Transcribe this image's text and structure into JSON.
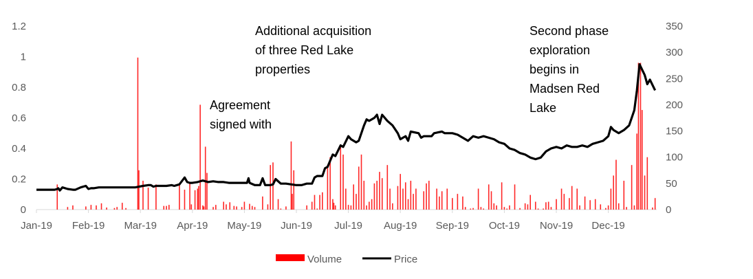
{
  "chart_data": {
    "type": "line+bar",
    "title": "",
    "xlabel": "",
    "ylabel_left": "",
    "ylabel_right": "",
    "x_unit": "months since Jan-19",
    "x_range": [
      0,
      11.9
    ],
    "x_ticks": [
      "Jan-19",
      "Feb-19",
      "Mar-19",
      "Apr-19",
      "May-19",
      "Jun-19",
      "Jul-19",
      "Aug-19",
      "Sep-19",
      "Oct-19",
      "Nov-19",
      "Dec-19"
    ],
    "y_left": {
      "range": [
        0,
        1.2
      ],
      "ticks": [
        "0",
        "0.2",
        "0.4",
        "0.6",
        "0.8",
        "1",
        "1.2"
      ],
      "tick_values": [
        0,
        0.2,
        0.4,
        0.6,
        0.8,
        1,
        1.2
      ]
    },
    "y_right": {
      "range": [
        0,
        350
      ],
      "ticks": [
        "0",
        "50",
        "100",
        "150",
        "200",
        "250",
        "300",
        "350"
      ],
      "tick_values": [
        0,
        50,
        100,
        150,
        200,
        250,
        300,
        350
      ]
    },
    "grid": false,
    "legend": {
      "position": "bottom",
      "items": [
        {
          "name": "Volume",
          "color": "#ff0000",
          "kind": "bar"
        },
        {
          "name": "Price",
          "color": "#000000",
          "kind": "line"
        }
      ]
    },
    "series": [
      {
        "name": "Price",
        "type": "line",
        "axis": "left",
        "color": "#000000",
        "points": [
          [
            0.0,
            0.13
          ],
          [
            0.35,
            0.13
          ],
          [
            0.4,
            0.135
          ],
          [
            0.42,
            0.14
          ],
          [
            0.45,
            0.125
          ],
          [
            0.5,
            0.145
          ],
          [
            0.6,
            0.135
          ],
          [
            0.7,
            0.13
          ],
          [
            0.75,
            0.13
          ],
          [
            0.85,
            0.145
          ],
          [
            0.95,
            0.155
          ],
          [
            1.0,
            0.135
          ],
          [
            1.05,
            0.14
          ],
          [
            1.1,
            0.14
          ],
          [
            1.2,
            0.145
          ],
          [
            1.3,
            0.145
          ],
          [
            1.5,
            0.145
          ],
          [
            1.6,
            0.145
          ],
          [
            1.7,
            0.145
          ],
          [
            1.9,
            0.145
          ],
          [
            2.05,
            0.155
          ],
          [
            2.15,
            0.16
          ],
          [
            2.2,
            0.16
          ],
          [
            2.25,
            0.15
          ],
          [
            2.3,
            0.155
          ],
          [
            2.5,
            0.155
          ],
          [
            2.6,
            0.16
          ],
          [
            2.65,
            0.155
          ],
          [
            2.75,
            0.165
          ],
          [
            2.85,
            0.21
          ],
          [
            2.9,
            0.18
          ],
          [
            2.95,
            0.175
          ],
          [
            3.0,
            0.175
          ],
          [
            3.1,
            0.18
          ],
          [
            3.2,
            0.19
          ],
          [
            3.3,
            0.18
          ],
          [
            3.4,
            0.185
          ],
          [
            3.5,
            0.18
          ],
          [
            3.6,
            0.18
          ],
          [
            3.7,
            0.175
          ],
          [
            3.8,
            0.175
          ],
          [
            3.9,
            0.175
          ],
          [
            4.0,
            0.175
          ],
          [
            4.05,
            0.175
          ],
          [
            4.08,
            0.205
          ],
          [
            4.1,
            0.175
          ],
          [
            4.2,
            0.16
          ],
          [
            4.3,
            0.16
          ],
          [
            4.35,
            0.205
          ],
          [
            4.4,
            0.16
          ],
          [
            4.5,
            0.16
          ],
          [
            4.55,
            0.165
          ],
          [
            4.6,
            0.2
          ],
          [
            4.7,
            0.17
          ],
          [
            4.8,
            0.17
          ],
          [
            5.0,
            0.16
          ],
          [
            5.1,
            0.16
          ],
          [
            5.2,
            0.17
          ],
          [
            5.3,
            0.17
          ],
          [
            5.35,
            0.21
          ],
          [
            5.4,
            0.22
          ],
          [
            5.5,
            0.22
          ],
          [
            5.55,
            0.27
          ],
          [
            5.6,
            0.28
          ],
          [
            5.7,
            0.36
          ],
          [
            5.75,
            0.35
          ],
          [
            5.85,
            0.42
          ],
          [
            5.9,
            0.41
          ],
          [
            6.0,
            0.48
          ],
          [
            6.05,
            0.46
          ],
          [
            6.1,
            0.45
          ],
          [
            6.15,
            0.44
          ],
          [
            6.2,
            0.45
          ],
          [
            6.3,
            0.55
          ],
          [
            6.35,
            0.59
          ],
          [
            6.4,
            0.58
          ],
          [
            6.5,
            0.6
          ],
          [
            6.55,
            0.62
          ],
          [
            6.6,
            0.56
          ],
          [
            6.65,
            0.62
          ],
          [
            6.75,
            0.58
          ],
          [
            6.85,
            0.55
          ],
          [
            6.95,
            0.5
          ],
          [
            7.0,
            0.46
          ],
          [
            7.05,
            0.47
          ],
          [
            7.1,
            0.48
          ],
          [
            7.15,
            0.45
          ],
          [
            7.2,
            0.51
          ],
          [
            7.35,
            0.5
          ],
          [
            7.4,
            0.47
          ],
          [
            7.45,
            0.48
          ],
          [
            7.6,
            0.48
          ],
          [
            7.65,
            0.5
          ],
          [
            7.8,
            0.51
          ],
          [
            7.85,
            0.5
          ],
          [
            8.0,
            0.5
          ],
          [
            8.1,
            0.49
          ],
          [
            8.2,
            0.47
          ],
          [
            8.3,
            0.45
          ],
          [
            8.4,
            0.48
          ],
          [
            8.5,
            0.47
          ],
          [
            8.6,
            0.48
          ],
          [
            8.7,
            0.47
          ],
          [
            8.8,
            0.46
          ],
          [
            8.9,
            0.44
          ],
          [
            9.0,
            0.43
          ],
          [
            9.1,
            0.4
          ],
          [
            9.2,
            0.39
          ],
          [
            9.3,
            0.37
          ],
          [
            9.4,
            0.36
          ],
          [
            9.5,
            0.34
          ],
          [
            9.6,
            0.33
          ],
          [
            9.7,
            0.34
          ],
          [
            9.8,
            0.38
          ],
          [
            9.9,
            0.4
          ],
          [
            10.0,
            0.41
          ],
          [
            10.1,
            0.4
          ],
          [
            10.2,
            0.42
          ],
          [
            10.3,
            0.41
          ],
          [
            10.4,
            0.41
          ],
          [
            10.5,
            0.42
          ],
          [
            10.6,
            0.41
          ],
          [
            10.7,
            0.43
          ],
          [
            10.8,
            0.44
          ],
          [
            10.9,
            0.45
          ],
          [
            11.0,
            0.48
          ],
          [
            11.05,
            0.54
          ],
          [
            11.1,
            0.52
          ],
          [
            11.2,
            0.5
          ],
          [
            11.3,
            0.52
          ],
          [
            11.4,
            0.55
          ],
          [
            11.5,
            0.65
          ],
          [
            11.55,
            0.78
          ],
          [
            11.6,
            0.95
          ],
          [
            11.7,
            0.88
          ],
          [
            11.75,
            0.82
          ],
          [
            11.8,
            0.85
          ],
          [
            11.9,
            0.78
          ]
        ]
      },
      {
        "name": "Volume",
        "type": "bar",
        "axis": "right",
        "color": "#ff0000",
        "points": [
          [
            0.4,
            48
          ],
          [
            0.6,
            5
          ],
          [
            0.7,
            8
          ],
          [
            0.95,
            6
          ],
          [
            1.05,
            9
          ],
          [
            1.15,
            8
          ],
          [
            1.25,
            12
          ],
          [
            1.35,
            4
          ],
          [
            1.5,
            3
          ],
          [
            1.55,
            5
          ],
          [
            1.65,
            13
          ],
          [
            1.72,
            3
          ],
          [
            1.95,
            290
          ],
          [
            1.97,
            75
          ],
          [
            2.05,
            55
          ],
          [
            2.15,
            42
          ],
          [
            2.3,
            48
          ],
          [
            2.45,
            7
          ],
          [
            2.5,
            7
          ],
          [
            2.55,
            9
          ],
          [
            2.75,
            48
          ],
          [
            2.85,
            38
          ],
          [
            2.95,
            52
          ],
          [
            2.98,
            10
          ],
          [
            3.05,
            37
          ],
          [
            3.1,
            40
          ],
          [
            3.12,
            45
          ],
          [
            3.15,
            200
          ],
          [
            3.2,
            8
          ],
          [
            3.22,
            6
          ],
          [
            3.25,
            120
          ],
          [
            3.28,
            70
          ],
          [
            3.4,
            5
          ],
          [
            3.45,
            9
          ],
          [
            3.6,
            15
          ],
          [
            3.65,
            10
          ],
          [
            3.72,
            14
          ],
          [
            3.8,
            7
          ],
          [
            3.85,
            6
          ],
          [
            3.95,
            5
          ],
          [
            4.0,
            15
          ],
          [
            4.1,
            11
          ],
          [
            4.15,
            7
          ],
          [
            4.2,
            5
          ],
          [
            4.35,
            25
          ],
          [
            4.45,
            10
          ],
          [
            4.5,
            85
          ],
          [
            4.55,
            90
          ],
          [
            4.65,
            20
          ],
          [
            4.7,
            2
          ],
          [
            4.8,
            6
          ],
          [
            4.9,
            130
          ],
          [
            4.92,
            30
          ],
          [
            4.95,
            75
          ],
          [
            5.2,
            8
          ],
          [
            5.3,
            15
          ],
          [
            5.35,
            28
          ],
          [
            5.4,
            2
          ],
          [
            5.45,
            28
          ],
          [
            5.5,
            33
          ],
          [
            5.6,
            85
          ],
          [
            5.65,
            100
          ],
          [
            5.7,
            20
          ],
          [
            5.72,
            13
          ],
          [
            5.75,
            8
          ],
          [
            5.85,
            120
          ],
          [
            5.9,
            105
          ],
          [
            5.95,
            40
          ],
          [
            6.0,
            9
          ],
          [
            6.05,
            8
          ],
          [
            6.1,
            48
          ],
          [
            6.15,
            30
          ],
          [
            6.2,
            82
          ],
          [
            6.25,
            105
          ],
          [
            6.3,
            55
          ],
          [
            6.35,
            8
          ],
          [
            6.4,
            15
          ],
          [
            6.45,
            20
          ],
          [
            6.5,
            50
          ],
          [
            6.55,
            55
          ],
          [
            6.6,
            72
          ],
          [
            6.65,
            60
          ],
          [
            6.75,
            85
          ],
          [
            6.8,
            40
          ],
          [
            6.85,
            12
          ],
          [
            6.95,
            45
          ],
          [
            7.0,
            68
          ],
          [
            7.05,
            40
          ],
          [
            7.1,
            52
          ],
          [
            7.15,
            20
          ],
          [
            7.2,
            55
          ],
          [
            7.25,
            30
          ],
          [
            7.3,
            40
          ],
          [
            7.45,
            35
          ],
          [
            7.5,
            50
          ],
          [
            7.55,
            55
          ],
          [
            7.7,
            40
          ],
          [
            7.75,
            25
          ],
          [
            7.8,
            35
          ],
          [
            7.9,
            40
          ],
          [
            8.0,
            22
          ],
          [
            8.1,
            30
          ],
          [
            8.2,
            25
          ],
          [
            8.25,
            5
          ],
          [
            8.35,
            2
          ],
          [
            8.4,
            3
          ],
          [
            8.5,
            40
          ],
          [
            8.55,
            5
          ],
          [
            8.6,
            2
          ],
          [
            8.7,
            48
          ],
          [
            8.75,
            35
          ],
          [
            8.8,
            12
          ],
          [
            8.85,
            8
          ],
          [
            8.95,
            52
          ],
          [
            9.0,
            5
          ],
          [
            9.05,
            2
          ],
          [
            9.1,
            8
          ],
          [
            9.2,
            48
          ],
          [
            9.3,
            3
          ],
          [
            9.4,
            12
          ],
          [
            9.45,
            10
          ],
          [
            9.5,
            28
          ],
          [
            9.6,
            15
          ],
          [
            9.65,
            2
          ],
          [
            9.75,
            2
          ],
          [
            9.8,
            14
          ],
          [
            9.85,
            15
          ],
          [
            9.9,
            5
          ],
          [
            10.0,
            20
          ],
          [
            10.1,
            40
          ],
          [
            10.15,
            30
          ],
          [
            10.25,
            22
          ],
          [
            10.3,
            45
          ],
          [
            10.4,
            40
          ],
          [
            10.45,
            8
          ],
          [
            10.55,
            25
          ],
          [
            10.65,
            18
          ],
          [
            10.75,
            20
          ],
          [
            10.85,
            10
          ],
          [
            10.95,
            3
          ],
          [
            11.0,
            8
          ],
          [
            11.05,
            40
          ],
          [
            11.1,
            65
          ],
          [
            11.15,
            95
          ],
          [
            11.2,
            12
          ],
          [
            11.3,
            55
          ],
          [
            11.35,
            5
          ],
          [
            11.45,
            85
          ],
          [
            11.5,
            8
          ],
          [
            11.55,
            145
          ],
          [
            11.58,
            280
          ],
          [
            11.62,
            280
          ],
          [
            11.65,
            190
          ],
          [
            11.7,
            65
          ],
          [
            11.75,
            100
          ],
          [
            11.85,
            4
          ],
          [
            11.9,
            22
          ]
        ]
      }
    ],
    "annotations": [
      {
        "lines": [
          "Agreement",
          "signed with"
        ]
      },
      {
        "lines": [
          "Additional acquisition",
          "of three Red Lake",
          "properties"
        ]
      },
      {
        "lines": [
          "Second phase",
          "exploration",
          "begins in",
          "Madsen Red",
          "Lake"
        ]
      }
    ]
  }
}
